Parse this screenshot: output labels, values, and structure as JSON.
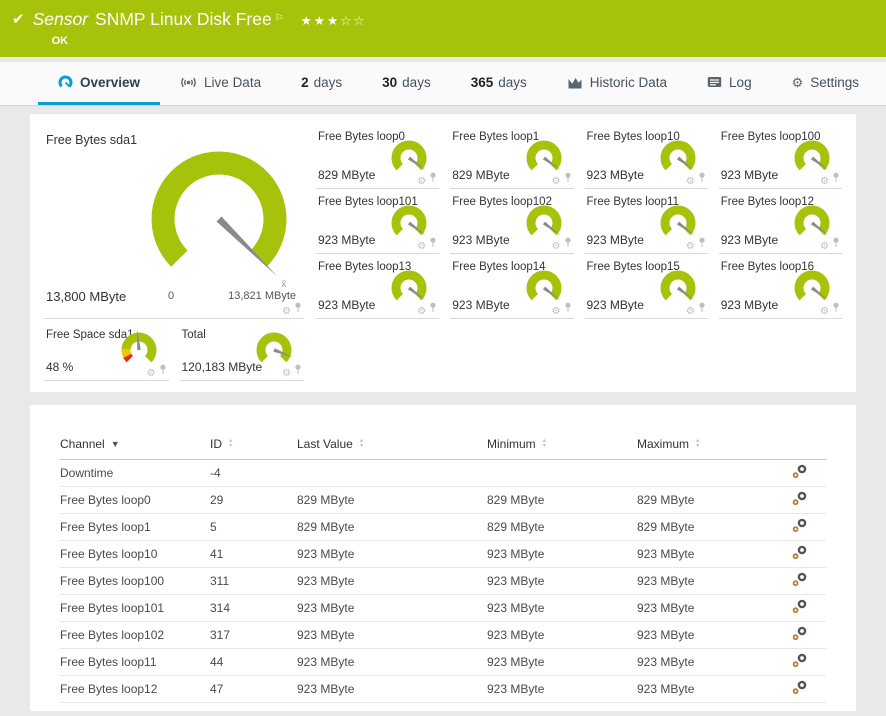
{
  "header": {
    "kind": "Sensor",
    "title": "SNMP Linux Disk Free",
    "status": "OK",
    "stars_filled": "★★★",
    "stars_empty": "☆☆"
  },
  "tabs": [
    {
      "id": "overview",
      "icon": "gauge-icon",
      "label": "Overview",
      "active": true
    },
    {
      "id": "live-data",
      "icon": "live-icon",
      "label": "Live Data",
      "active": false
    },
    {
      "id": "2-days",
      "num": "2",
      "label": "days",
      "active": false
    },
    {
      "id": "30-days",
      "num": "30",
      "label": "days",
      "active": false
    },
    {
      "id": "365-days",
      "num": "365",
      "label": "days",
      "active": false
    },
    {
      "id": "historic-data",
      "icon": "chart-icon",
      "label": "Historic Data",
      "active": false
    },
    {
      "id": "log",
      "icon": "log-icon",
      "label": "Log",
      "active": false
    },
    {
      "id": "settings",
      "icon": "gear-icon",
      "label": "Settings",
      "active": false
    }
  ],
  "gauges": {
    "main": {
      "title": "Free Bytes sda1",
      "value": "13,800 MByte",
      "scale_min": "0",
      "scale_max": "13,821 MByte",
      "mean_label": "x̄",
      "fraction": 0.9985
    },
    "tiles": [
      {
        "title": "Free Bytes loop0",
        "value": "829 MByte",
        "fraction": 0.97
      },
      {
        "title": "Free Bytes loop1",
        "value": "829 MByte",
        "fraction": 0.97
      },
      {
        "title": "Free Bytes loop10",
        "value": "923 MByte",
        "fraction": 0.97
      },
      {
        "title": "Free Bytes loop100",
        "value": "923 MByte",
        "fraction": 0.97
      },
      {
        "title": "Free Bytes loop101",
        "value": "923 MByte",
        "fraction": 0.97
      },
      {
        "title": "Free Bytes loop102",
        "value": "923 MByte",
        "fraction": 0.97
      },
      {
        "title": "Free Bytes loop11",
        "value": "923 MByte",
        "fraction": 0.97
      },
      {
        "title": "Free Bytes loop12",
        "value": "923 MByte",
        "fraction": 0.97
      },
      {
        "title": "Free Bytes loop13",
        "value": "923 MByte",
        "fraction": 0.97
      },
      {
        "title": "Free Bytes loop14",
        "value": "923 MByte",
        "fraction": 0.97
      },
      {
        "title": "Free Bytes loop15",
        "value": "923 MByte",
        "fraction": 0.97
      },
      {
        "title": "Free Bytes loop16",
        "value": "923 MByte",
        "fraction": 0.97
      }
    ],
    "bottom": [
      {
        "title": "Free Space sda1",
        "value": "48 %",
        "fraction": 0.48,
        "segments": [
          {
            "color": "#d93025",
            "from": 0,
            "to": 0.07
          },
          {
            "color": "#f2c500",
            "from": 0.07,
            "to": 0.18
          },
          {
            "color": "#a7c20a",
            "from": 0.18,
            "to": 1
          }
        ]
      },
      {
        "title": "Total",
        "value": "120,183 MByte",
        "fraction": 0.91
      }
    ]
  },
  "table": {
    "columns": [
      {
        "label": "Channel",
        "sort": "desc"
      },
      {
        "label": "ID",
        "sort": "none"
      },
      {
        "label": "Last Value",
        "sort": "none"
      },
      {
        "label": "Minimum",
        "sort": "none"
      },
      {
        "label": "Maximum",
        "sort": "none"
      }
    ],
    "rows": [
      {
        "channel": "Downtime",
        "id": "-4",
        "last": "",
        "min": "",
        "max": ""
      },
      {
        "channel": "Free Bytes loop0",
        "id": "29",
        "last": "829 MByte",
        "min": "829 MByte",
        "max": "829 MByte"
      },
      {
        "channel": "Free Bytes loop1",
        "id": "5",
        "last": "829 MByte",
        "min": "829 MByte",
        "max": "829 MByte"
      },
      {
        "channel": "Free Bytes loop10",
        "id": "41",
        "last": "923 MByte",
        "min": "923 MByte",
        "max": "923 MByte"
      },
      {
        "channel": "Free Bytes loop100",
        "id": "311",
        "last": "923 MByte",
        "min": "923 MByte",
        "max": "923 MByte"
      },
      {
        "channel": "Free Bytes loop101",
        "id": "314",
        "last": "923 MByte",
        "min": "923 MByte",
        "max": "923 MByte"
      },
      {
        "channel": "Free Bytes loop102",
        "id": "317",
        "last": "923 MByte",
        "min": "923 MByte",
        "max": "923 MByte"
      },
      {
        "channel": "Free Bytes loop11",
        "id": "44",
        "last": "923 MByte",
        "min": "923 MByte",
        "max": "923 MByte"
      },
      {
        "channel": "Free Bytes loop12",
        "id": "47",
        "last": "923 MByte",
        "min": "923 MByte",
        "max": "923 MByte"
      }
    ]
  },
  "icons": {
    "check": "✔",
    "flag": "⚐",
    "gear": "⚙",
    "sort_asc": "▲",
    "sort_desc": "▼"
  },
  "colors": {
    "brand_green": "#a7c20a",
    "tab_active_blue": "#0c9bd3",
    "icon_gray": "#5a6570",
    "needle_gray": "#8a8a8a",
    "gauge_red": "#d93025",
    "gauge_yellow": "#f2c500"
  }
}
